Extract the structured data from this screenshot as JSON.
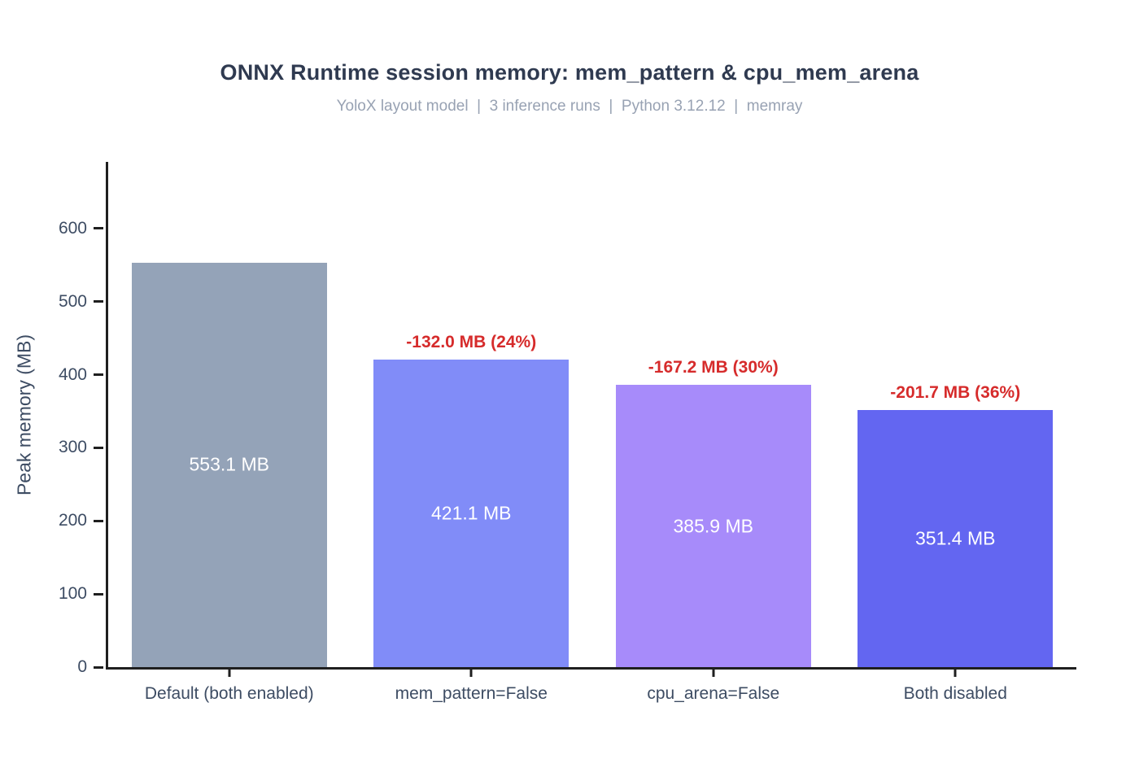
{
  "chart_data": {
    "type": "bar",
    "title": "ONNX Runtime session memory: mem_pattern & cpu_mem_arena",
    "subtitle": "YoloX layout model  |  3 inference runs  |  Python 3.12.12  |  memray",
    "ylabel": "Peak memory (MB)",
    "xlabel": "",
    "categories": [
      "Default (both enabled)",
      "mem_pattern=False",
      "cpu_arena=False",
      "Both disabled"
    ],
    "values": [
      553.1,
      421.1,
      385.9,
      351.4
    ],
    "bar_labels": [
      "553.1 MB",
      "421.1 MB",
      "385.9 MB",
      "351.4 MB"
    ],
    "annotations": [
      null,
      "-132.0 MB (24%)",
      "-167.2 MB (30%)",
      "-201.7 MB (36%)"
    ],
    "bar_colors": [
      "#94a3b8",
      "#818cf8",
      "#a78bfa",
      "#6366f1"
    ],
    "annotation_color": "#d62b2b",
    "value_label_color": "#ffffff",
    "ylim": [
      0,
      691
    ],
    "yticks": [
      0,
      100,
      200,
      300,
      400,
      500,
      600
    ],
    "grid": false,
    "legend": null
  }
}
